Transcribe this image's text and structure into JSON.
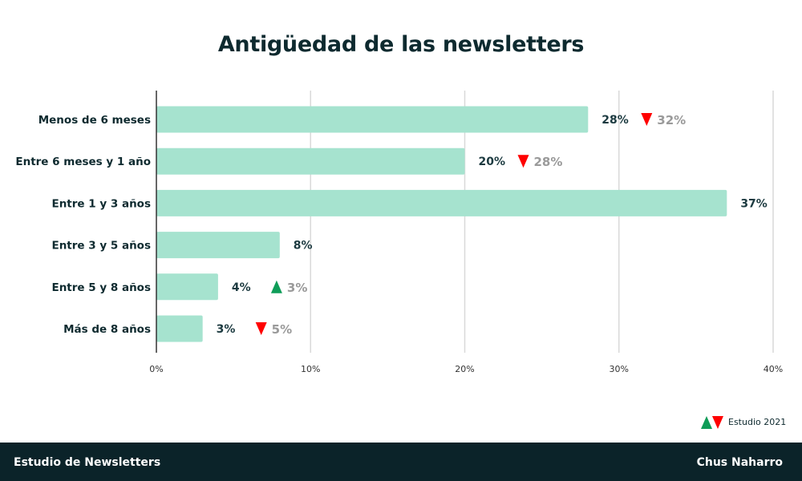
{
  "chart_data": {
    "type": "bar",
    "orientation": "horizontal",
    "title": "Antigüedad de las newsletters",
    "categories": [
      "Menos de 6 meses",
      "Entre 6 meses y 1 año",
      "Entre 1 y 3 años",
      "Entre 3 y 5 años",
      "Entre 5 y 8 años",
      "Más de 8 años"
    ],
    "values": [
      28,
      20,
      37,
      8,
      4,
      3
    ],
    "value_labels": [
      "28%",
      "20%",
      "37%",
      "8%",
      "4%",
      "3%"
    ],
    "previous_values": [
      32,
      28,
      null,
      null,
      3,
      5
    ],
    "previous_labels": [
      "32%",
      "28%",
      null,
      null,
      "3%",
      "5%"
    ],
    "trend": [
      "down",
      "down",
      null,
      null,
      "up",
      "down"
    ],
    "xlim": [
      0,
      40
    ],
    "xticks": [
      "0%",
      "10%",
      "20%",
      "30%",
      "40%"
    ],
    "grid": true,
    "colors": {
      "bar": "#a6e3cf",
      "up": "#0f9d58",
      "down": "#ff0000",
      "previous": "#9a9a9a"
    }
  },
  "legend": {
    "label": "Estudio 2021"
  },
  "footer": {
    "left": "Estudio de Newsletters",
    "right": "Chus Naharro"
  }
}
